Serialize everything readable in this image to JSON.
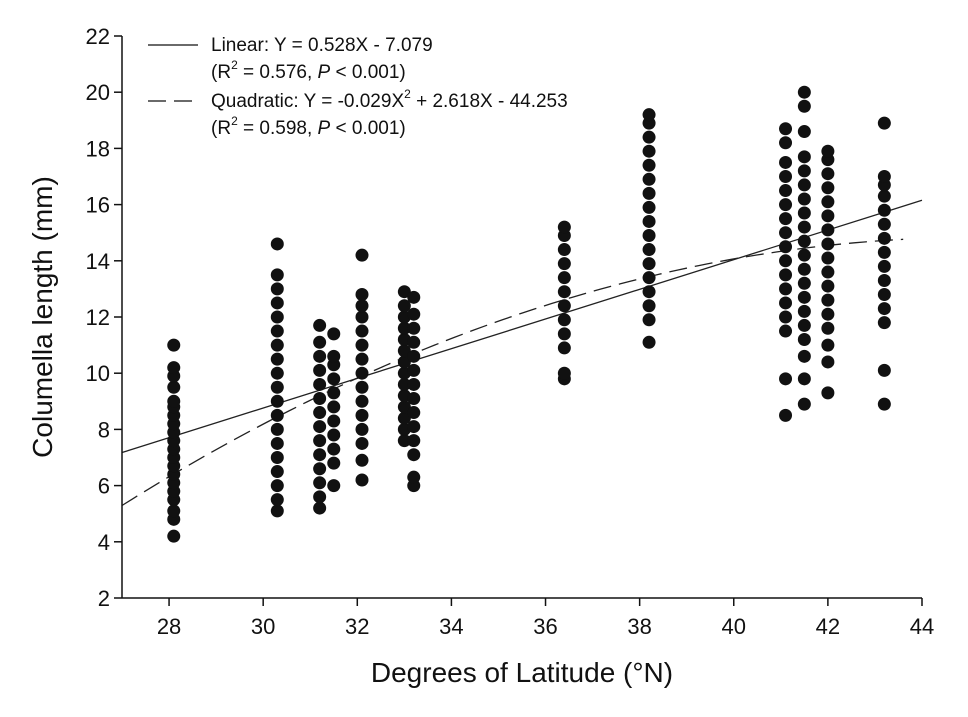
{
  "chart_data": {
    "type": "scatter",
    "xlabel": "Degrees of Latitude (°N)",
    "ylabel": "Columella length (mm)",
    "xlim": [
      27,
      44
    ],
    "ylim": [
      2,
      22
    ],
    "x_ticks": [
      28,
      30,
      32,
      34,
      36,
      38,
      40,
      42,
      44
    ],
    "y_ticks": [
      2,
      4,
      6,
      8,
      10,
      12,
      14,
      16,
      18,
      20,
      22
    ],
    "grid": false,
    "legend_position": "top-left",
    "marker_color": "#111111",
    "legend": [
      {
        "style": "solid",
        "line1": [
          "Linear: Y = 0.528X - 7.079",
          "",
          "",
          ""
        ],
        "line2": [
          "(R",
          "2",
          " = 0.576, ",
          "P",
          " < 0.001)"
        ]
      },
      {
        "style": "dashed",
        "line1": [
          "Quadratic: Y = -0.029X",
          "2",
          " + 2.618X - 44.253"
        ],
        "line2": [
          "(R",
          "2",
          " = 0.598, ",
          "P",
          " < 0.001)"
        ]
      }
    ],
    "fits": {
      "linear": {
        "a": 0.528,
        "b": -7.079,
        "x_range": [
          27,
          44
        ]
      },
      "quadratic": {
        "a": -0.029,
        "b": 2.618,
        "c": -44.253,
        "x_range": [
          27,
          43.6
        ]
      }
    },
    "series": [
      {
        "x": 28.1,
        "y": [
          4.2,
          4.8,
          5.1,
          5.5,
          5.8,
          6.1,
          6.4,
          6.7,
          7.0,
          7.3,
          7.6,
          7.9,
          8.2,
          8.5,
          8.8,
          9.0,
          9.5,
          9.9,
          10.2,
          11.0
        ]
      },
      {
        "x": 30.3,
        "y": [
          5.1,
          5.5,
          6.0,
          6.5,
          7.0,
          7.5,
          8.0,
          8.5,
          9.0,
          9.5,
          10.0,
          10.5,
          11.0,
          11.5,
          12.0,
          12.5,
          13.0,
          13.5,
          14.6
        ]
      },
      {
        "x": 31.2,
        "y": [
          5.2,
          5.6,
          6.1,
          6.6,
          7.1,
          7.6,
          8.1,
          8.6,
          9.1,
          9.6,
          10.1,
          10.6,
          11.1,
          11.7
        ]
      },
      {
        "x": 31.5,
        "y": [
          6.0,
          6.8,
          7.3,
          7.8,
          8.3,
          8.8,
          9.3,
          9.8,
          10.3,
          10.6,
          11.4
        ]
      },
      {
        "x": 32.1,
        "y": [
          6.2,
          6.9,
          7.5,
          8.0,
          8.5,
          9.0,
          9.5,
          10.0,
          10.5,
          11.0,
          11.5,
          12.0,
          12.4,
          12.8,
          14.2
        ]
      },
      {
        "x": 33.0,
        "y": [
          7.6,
          8.0,
          8.4,
          8.8,
          9.2,
          9.6,
          10.0,
          10.4,
          10.8,
          11.2,
          11.6,
          12.0,
          12.4,
          12.9
        ]
      },
      {
        "x": 33.2,
        "y": [
          6.0,
          6.3,
          7.1,
          7.6,
          8.1,
          8.6,
          9.1,
          9.6,
          10.1,
          10.6,
          11.1,
          11.6,
          12.1,
          12.7
        ]
      },
      {
        "x": 36.4,
        "y": [
          9.8,
          10.0,
          10.9,
          11.4,
          11.9,
          12.4,
          12.9,
          13.4,
          13.9,
          14.4,
          14.9,
          15.2
        ]
      },
      {
        "x": 38.2,
        "y": [
          11.1,
          11.9,
          12.4,
          12.9,
          13.4,
          13.9,
          14.4,
          14.9,
          15.4,
          15.9,
          16.4,
          16.9,
          17.4,
          17.9,
          18.4,
          18.9,
          19.2
        ]
      },
      {
        "x": 41.1,
        "y": [
          8.5,
          9.8,
          11.5,
          12.0,
          12.5,
          13.0,
          13.5,
          14.0,
          14.5,
          15.0,
          15.5,
          16.0,
          16.5,
          17.0,
          17.5,
          18.2,
          18.7
        ]
      },
      {
        "x": 41.5,
        "y": [
          8.9,
          9.8,
          10.6,
          11.2,
          11.7,
          12.2,
          12.7,
          13.2,
          13.7,
          14.2,
          14.7,
          15.2,
          15.7,
          16.2,
          16.7,
          17.2,
          17.7,
          18.6,
          19.5,
          20.0
        ]
      },
      {
        "x": 42.0,
        "y": [
          9.3,
          10.4,
          11.0,
          11.6,
          12.1,
          12.6,
          13.1,
          13.6,
          14.1,
          14.6,
          15.1,
          15.6,
          16.1,
          16.6,
          17.1,
          17.6,
          17.9
        ]
      },
      {
        "x": 43.2,
        "y": [
          8.9,
          10.1,
          11.8,
          12.3,
          12.8,
          13.3,
          13.8,
          14.3,
          14.8,
          15.3,
          15.8,
          16.3,
          16.7,
          17.0,
          18.9
        ]
      }
    ]
  }
}
